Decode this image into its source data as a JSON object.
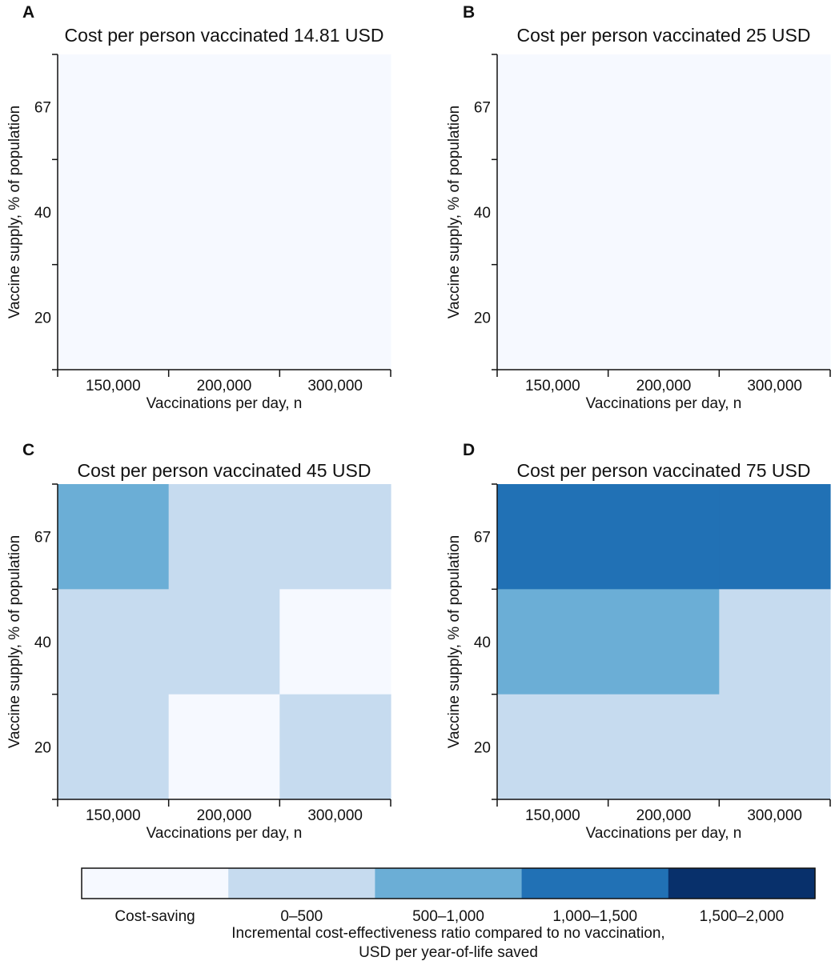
{
  "chart_data": {
    "type": "heatmap",
    "x_label": "Vaccinations per day, n",
    "y_label": "Vaccine supply, % of population",
    "x_categories": [
      "150,000",
      "200,000",
      "300,000"
    ],
    "y_categories": [
      "20",
      "40",
      "67"
    ],
    "legend": {
      "title_line1": "Incremental cost-effectiveness ratio compared to no vaccination,",
      "title_line2": "USD per year-of-life saved",
      "bins": [
        {
          "label": "Cost-saving",
          "color": "#f6f9ff"
        },
        {
          "label": "0–500",
          "color": "#c6dbef"
        },
        {
          "label": "500–1,000",
          "color": "#6baed6"
        },
        {
          "label": "1,000–1,500",
          "color": "#2171b5"
        },
        {
          "label": "1,500–2,000",
          "color": "#08306b"
        }
      ]
    },
    "panels": [
      {
        "letter": "A",
        "title": "Cost per person vaccinated 14.81 USD",
        "grid_rows_top_to_bottom": [
          [
            "Cost-saving",
            "Cost-saving",
            "Cost-saving"
          ],
          [
            "Cost-saving",
            "Cost-saving",
            "Cost-saving"
          ],
          [
            "Cost-saving",
            "Cost-saving",
            "Cost-saving"
          ]
        ]
      },
      {
        "letter": "B",
        "title": "Cost per person vaccinated 25 USD",
        "grid_rows_top_to_bottom": [
          [
            "Cost-saving",
            "Cost-saving",
            "Cost-saving"
          ],
          [
            "Cost-saving",
            "Cost-saving",
            "Cost-saving"
          ],
          [
            "Cost-saving",
            "Cost-saving",
            "Cost-saving"
          ]
        ]
      },
      {
        "letter": "C",
        "title": "Cost per person vaccinated 45 USD",
        "grid_rows_top_to_bottom": [
          [
            "500–1,000",
            "0–500",
            "0–500"
          ],
          [
            "0–500",
            "0–500",
            "Cost-saving"
          ],
          [
            "0–500",
            "Cost-saving",
            "0–500"
          ]
        ]
      },
      {
        "letter": "D",
        "title": "Cost per person vaccinated 75 USD",
        "grid_rows_top_to_bottom": [
          [
            "1,000–1,500",
            "1,000–1,500",
            "1,000–1,500"
          ],
          [
            "500–1,000",
            "500–1,000",
            "0–500"
          ],
          [
            "0–500",
            "0–500",
            "0–500"
          ]
        ]
      }
    ]
  }
}
